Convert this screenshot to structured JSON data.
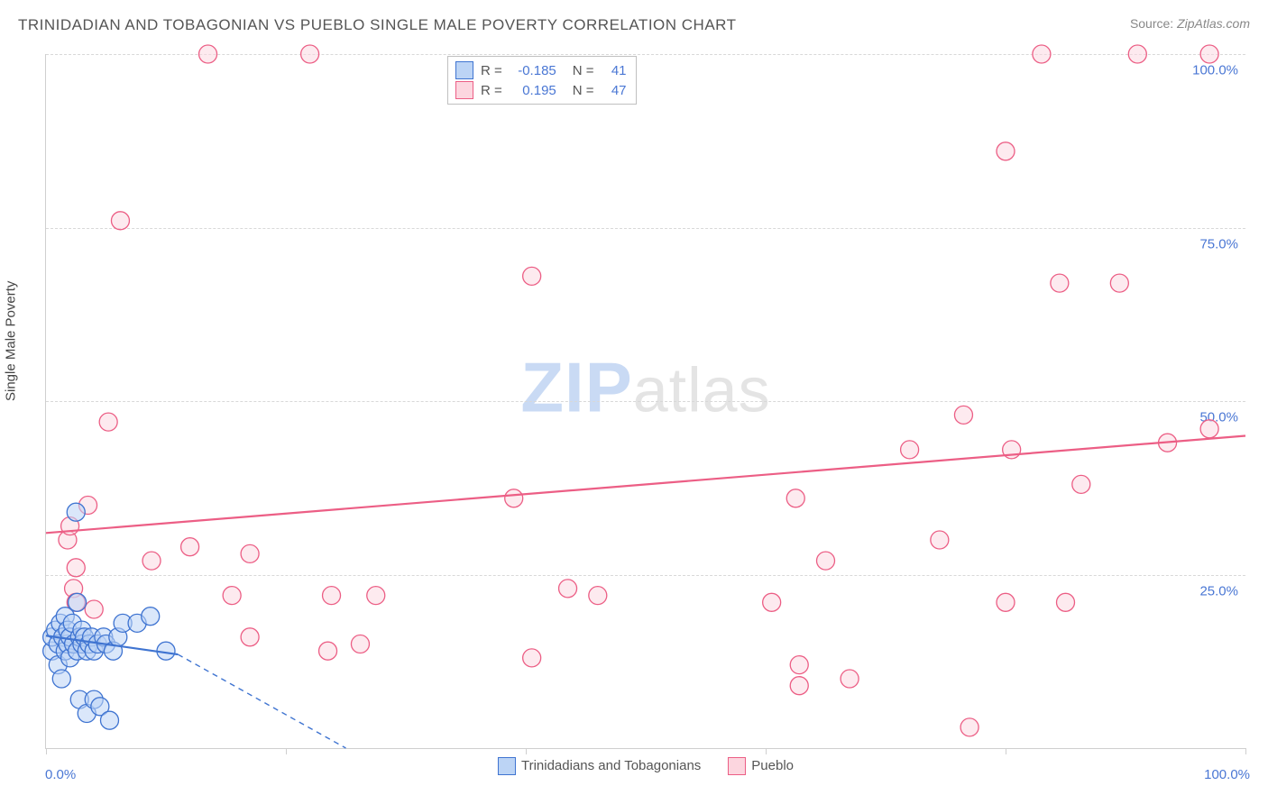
{
  "title": "TRINIDADIAN AND TOBAGONIAN VS PUEBLO SINGLE MALE POVERTY CORRELATION CHART",
  "source_label": "Source: ",
  "source_url": "ZipAtlas.com",
  "y_axis_label": "Single Male Poverty",
  "watermark": {
    "zip": "ZIP",
    "atlas": "atlas"
  },
  "chart": {
    "type": "scatter",
    "xlim": [
      0,
      100
    ],
    "ylim": [
      0,
      100
    ],
    "x_ticks": [
      0,
      20,
      40,
      60,
      80,
      100
    ],
    "y_gridlines": [
      25,
      50,
      75,
      100
    ],
    "y_tick_labels": [
      "25.0%",
      "50.0%",
      "75.0%",
      "100.0%"
    ],
    "x_tick_labels": {
      "min": "0.0%",
      "max": "100.0%"
    },
    "background_color": "#ffffff",
    "grid_color": "#d8d8d8",
    "axis_color": "#cfcfcf",
    "tick_label_color": "#4a77d4",
    "marker_radius": 10,
    "marker_stroke_width": 1.3,
    "trend_line_width": 2.2,
    "dashed_line_dash": "6,5",
    "series": [
      {
        "name": "Trinidadians and Tobagonians",
        "fill": "#bcd4f5",
        "stroke": "#3f74d1",
        "fill_opacity": 0.55,
        "R": "-0.185",
        "N": "41",
        "trend": {
          "x1": 0,
          "y1": 16.2,
          "x2": 11,
          "y2": 13.5,
          "dashed_to_x": 25,
          "dashed_to_y": 0
        },
        "points": [
          [
            0.5,
            14
          ],
          [
            0.5,
            16
          ],
          [
            0.8,
            17
          ],
          [
            1.0,
            12
          ],
          [
            1.0,
            15
          ],
          [
            1.2,
            18
          ],
          [
            1.3,
            10
          ],
          [
            1.4,
            16
          ],
          [
            1.6,
            14
          ],
          [
            1.6,
            19
          ],
          [
            1.8,
            15
          ],
          [
            1.8,
            17
          ],
          [
            2.0,
            16
          ],
          [
            2.0,
            13
          ],
          [
            2.2,
            18
          ],
          [
            2.3,
            15
          ],
          [
            2.5,
            34
          ],
          [
            2.6,
            14
          ],
          [
            2.6,
            21
          ],
          [
            2.8,
            7
          ],
          [
            2.8,
            16
          ],
          [
            3.0,
            17
          ],
          [
            3.0,
            15
          ],
          [
            3.2,
            16
          ],
          [
            3.4,
            5
          ],
          [
            3.4,
            14
          ],
          [
            3.6,
            15
          ],
          [
            3.8,
            16
          ],
          [
            4.0,
            7
          ],
          [
            4.0,
            14
          ],
          [
            4.3,
            15
          ],
          [
            4.5,
            6
          ],
          [
            4.8,
            16
          ],
          [
            5.0,
            15
          ],
          [
            5.3,
            4
          ],
          [
            5.6,
            14
          ],
          [
            6.0,
            16
          ],
          [
            6.4,
            18
          ],
          [
            7.6,
            18
          ],
          [
            8.7,
            19
          ],
          [
            10.0,
            14
          ]
        ]
      },
      {
        "name": "Pueblo",
        "fill": "#fcd6df",
        "stroke": "#ec5e85",
        "fill_opacity": 0.5,
        "R": "0.195",
        "N": "47",
        "trend": {
          "x1": 0,
          "y1": 31.0,
          "x2": 100,
          "y2": 45.0
        },
        "points": [
          [
            1.8,
            30
          ],
          [
            2.0,
            32
          ],
          [
            2.3,
            23
          ],
          [
            2.5,
            21
          ],
          [
            2.5,
            26
          ],
          [
            3.5,
            35
          ],
          [
            4.0,
            20
          ],
          [
            5.2,
            47
          ],
          [
            6.2,
            76
          ],
          [
            8.8,
            27
          ],
          [
            12.0,
            29
          ],
          [
            13.5,
            100
          ],
          [
            15.5,
            22
          ],
          [
            17.0,
            16
          ],
          [
            17.0,
            28
          ],
          [
            22.0,
            100
          ],
          [
            23.5,
            14
          ],
          [
            23.8,
            22
          ],
          [
            26.2,
            15
          ],
          [
            27.5,
            22
          ],
          [
            39.0,
            36
          ],
          [
            40.5,
            68
          ],
          [
            40.5,
            13
          ],
          [
            43.5,
            23
          ],
          [
            46.0,
            22
          ],
          [
            60.5,
            21
          ],
          [
            62.5,
            36
          ],
          [
            62.8,
            9
          ],
          [
            62.8,
            12
          ],
          [
            65.0,
            27
          ],
          [
            67.0,
            10
          ],
          [
            72.0,
            43
          ],
          [
            74.5,
            30
          ],
          [
            76.5,
            48
          ],
          [
            77.0,
            3
          ],
          [
            80.0,
            21
          ],
          [
            80.5,
            43
          ],
          [
            80.0,
            86
          ],
          [
            83.0,
            100
          ],
          [
            84.5,
            67
          ],
          [
            85.0,
            21
          ],
          [
            86.3,
            38
          ],
          [
            89.5,
            67
          ],
          [
            91.0,
            100
          ],
          [
            93.5,
            44
          ],
          [
            97.0,
            100
          ],
          [
            97.0,
            46
          ]
        ]
      }
    ]
  },
  "correlation_box": {
    "R_label": "R =",
    "N_label": "N ="
  },
  "legend_labels": [
    "Trinidadians and Tobagonians",
    "Pueblo"
  ]
}
